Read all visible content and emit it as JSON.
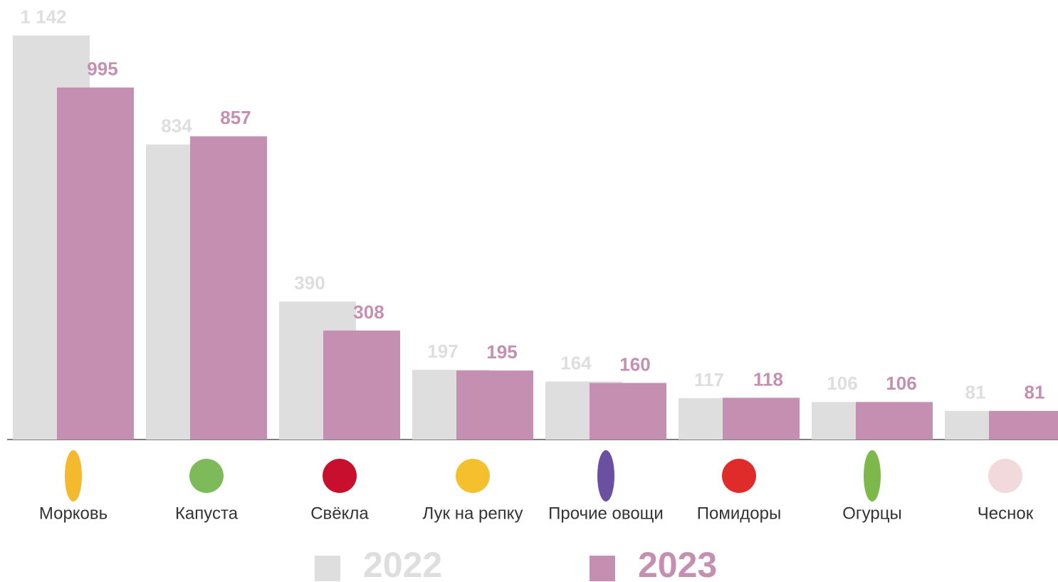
{
  "chart_data": {
    "type": "bar",
    "categories": [
      "Морковь",
      "Капуста",
      "Свёкла",
      "Лук на репку",
      "Прочие овощи",
      "Помидоры",
      "Огурцы",
      "Чеснок"
    ],
    "series": [
      {
        "name": "2022",
        "color": "#dedede",
        "values": [
          1142,
          834,
          390,
          197,
          164,
          117,
          106,
          81
        ],
        "value_labels": [
          "1 142",
          "834",
          "390",
          "197",
          "164",
          "117",
          "106",
          "81"
        ]
      },
      {
        "name": "2023",
        "color": "#c48fb0",
        "values": [
          995,
          857,
          308,
          195,
          160,
          118,
          106,
          81
        ]
      }
    ],
    "ylim": [
      0,
      1200
    ]
  }
}
